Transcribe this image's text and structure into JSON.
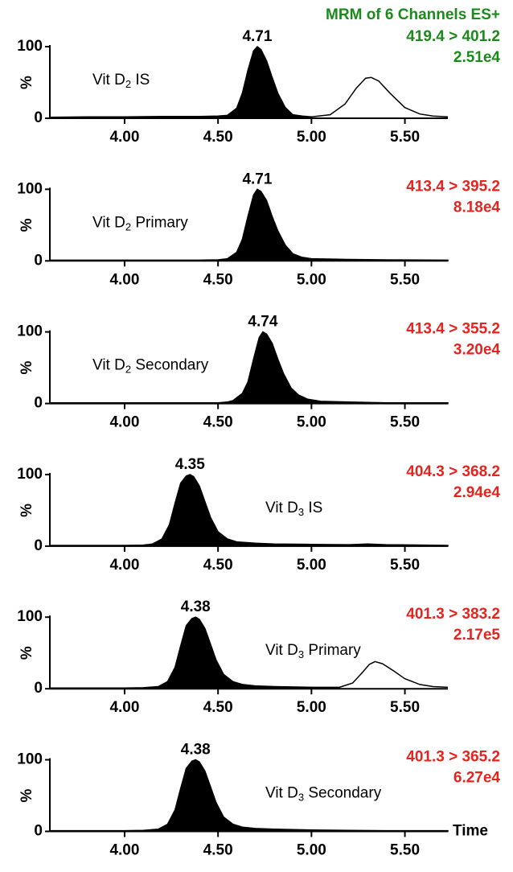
{
  "chart_data": [
    {
      "type": "line",
      "title": "MRM of 6 Channels ES+",
      "title_color": "#1a8a1a",
      "label": [
        "Vit D",
        "2",
        " IS"
      ],
      "channel": "419.4 > 401.2",
      "intensity": "2.51e4",
      "channel_color": "#1a8a1a",
      "peak_label": "4.71",
      "ylabel": "%",
      "xlim": [
        3.6,
        5.73
      ],
      "ylim": [
        0,
        100
      ],
      "yticks": [
        0,
        100
      ],
      "xticks": [
        {
          "value": 4,
          "label": "4.00"
        },
        {
          "value": 4.5,
          "label": "4.50"
        },
        {
          "value": 5,
          "label": "5.00"
        },
        {
          "value": 5.5,
          "label": "5.50"
        }
      ],
      "series": [
        {
          "color": "#000000",
          "fill": true,
          "x": [
            3.6,
            3.8,
            4.0,
            4.2,
            4.4,
            4.5,
            4.55,
            4.6,
            4.63,
            4.66,
            4.69,
            4.71,
            4.73,
            4.76,
            4.79,
            4.82,
            4.86,
            4.9,
            4.95,
            5.0
          ],
          "values": [
            1.5,
            2,
            2,
            2.5,
            2.5,
            3,
            4,
            14,
            35,
            67,
            94,
            100,
            96,
            80,
            57,
            35,
            15,
            5,
            3,
            2
          ]
        },
        {
          "color": "#000000",
          "fill": false,
          "x": [
            5.0,
            5.1,
            5.18,
            5.24,
            5.29,
            5.32,
            5.36,
            5.42,
            5.5,
            5.58,
            5.65,
            5.73
          ],
          "values": [
            2,
            5,
            20,
            42,
            56,
            57,
            52,
            35,
            15,
            6,
            3,
            2
          ]
        }
      ]
    },
    {
      "type": "line",
      "label": [
        "Vit D",
        "2",
        " Primary"
      ],
      "channel": "413.4 > 395.2",
      "intensity": "8.18e4",
      "channel_color": "#e52420",
      "peak_label": "4.71",
      "ylabel": "%",
      "xlim": [
        3.6,
        5.73
      ],
      "ylim": [
        0,
        100
      ],
      "yticks": [
        0,
        100
      ],
      "xticks": [
        {
          "value": 4,
          "label": "4.00"
        },
        {
          "value": 4.5,
          "label": "4.50"
        },
        {
          "value": 5,
          "label": "5.00"
        },
        {
          "value": 5.5,
          "label": "5.50"
        }
      ],
      "series": [
        {
          "color": "#000000",
          "fill": true,
          "x": [
            3.6,
            3.8,
            4.0,
            4.2,
            4.4,
            4.5,
            4.55,
            4.6,
            4.63,
            4.66,
            4.69,
            4.71,
            4.73,
            4.76,
            4.79,
            4.82,
            4.86,
            4.9,
            4.95,
            5.0,
            5.2,
            5.4,
            5.73
          ],
          "values": [
            1,
            1,
            1,
            1,
            1,
            1.5,
            3,
            12,
            30,
            62,
            92,
            100,
            97,
            84,
            62,
            42,
            22,
            10,
            5,
            3,
            2,
            1.5,
            1
          ]
        }
      ]
    },
    {
      "type": "line",
      "label": [
        "Vit D",
        "2",
        " Secondary"
      ],
      "channel": "413.4 > 355.2",
      "intensity": "3.20e4",
      "channel_color": "#e52420",
      "peak_label": "4.74",
      "ylabel": "%",
      "xlim": [
        3.6,
        5.73
      ],
      "ylim": [
        0,
        100
      ],
      "yticks": [
        0,
        100
      ],
      "xticks": [
        {
          "value": 4,
          "label": "4.00"
        },
        {
          "value": 4.5,
          "label": "4.50"
        },
        {
          "value": 5,
          "label": "5.00"
        },
        {
          "value": 5.5,
          "label": "5.50"
        }
      ],
      "series": [
        {
          "color": "#000000",
          "fill": true,
          "x": [
            3.6,
            3.8,
            4.0,
            4.2,
            4.4,
            4.5,
            4.55,
            4.58,
            4.63,
            4.66,
            4.69,
            4.72,
            4.74,
            4.76,
            4.79,
            4.82,
            4.85,
            4.89,
            4.93,
            4.98,
            5.05,
            5.2,
            5.4,
            5.73
          ],
          "values": [
            1,
            1,
            1,
            1,
            1,
            1,
            2,
            4,
            14,
            30,
            62,
            92,
            100,
            97,
            84,
            62,
            42,
            22,
            12,
            6,
            3,
            2,
            1,
            1
          ]
        }
      ]
    },
    {
      "type": "line",
      "label": [
        "Vit D",
        "3",
        " IS"
      ],
      "channel": "404.3 > 368.2",
      "intensity": "2.94e4",
      "channel_color": "#e52420",
      "peak_label": "4.35",
      "ylabel": "%",
      "xlim": [
        3.6,
        5.73
      ],
      "ylim": [
        0,
        100
      ],
      "yticks": [
        0,
        100
      ],
      "xticks": [
        {
          "value": 4,
          "label": "4.00"
        },
        {
          "value": 4.5,
          "label": "4.50"
        },
        {
          "value": 5,
          "label": "5.00"
        },
        {
          "value": 5.5,
          "label": "5.50"
        }
      ],
      "series": [
        {
          "color": "#000000",
          "fill": true,
          "x": [
            3.6,
            3.8,
            4.0,
            4.1,
            4.15,
            4.2,
            4.24,
            4.27,
            4.3,
            4.33,
            4.35,
            4.37,
            4.4,
            4.43,
            4.46,
            4.5,
            4.55,
            4.6,
            4.7,
            4.8,
            5.0,
            5.2,
            5.3,
            5.4,
            5.73
          ],
          "values": [
            1,
            1,
            1,
            1.5,
            3,
            10,
            30,
            60,
            88,
            98,
            100,
            97,
            84,
            62,
            40,
            20,
            10,
            6,
            4,
            3,
            2.5,
            2,
            3,
            2,
            1
          ]
        }
      ]
    },
    {
      "type": "line",
      "label": [
        "Vit D",
        "3",
        " Primary"
      ],
      "channel": "401.3 > 383.2",
      "intensity": "2.17e5",
      "channel_color": "#e52420",
      "peak_label": "4.38",
      "ylabel": "%",
      "xlim": [
        3.6,
        5.73
      ],
      "ylim": [
        0,
        100
      ],
      "yticks": [
        0,
        100
      ],
      "xticks": [
        {
          "value": 4,
          "label": "4.00"
        },
        {
          "value": 4.5,
          "label": "4.50"
        },
        {
          "value": 5,
          "label": "5.00"
        },
        {
          "value": 5.5,
          "label": "5.50"
        }
      ],
      "series": [
        {
          "color": "#000000",
          "fill": true,
          "x": [
            3.6,
            3.8,
            4.0,
            4.1,
            4.18,
            4.23,
            4.27,
            4.3,
            4.33,
            4.36,
            4.38,
            4.4,
            4.43,
            4.46,
            4.49,
            4.53,
            4.58,
            4.63,
            4.7,
            4.8,
            5.0,
            5.15
          ],
          "values": [
            1,
            1,
            1,
            1.5,
            3,
            10,
            30,
            60,
            88,
            98,
            100,
            97,
            84,
            62,
            40,
            20,
            10,
            6,
            4,
            3,
            2,
            2
          ]
        },
        {
          "color": "#000000",
          "fill": false,
          "x": [
            5.15,
            5.22,
            5.27,
            5.31,
            5.34,
            5.38,
            5.44,
            5.5,
            5.58,
            5.65,
            5.73
          ],
          "values": [
            2,
            8,
            22,
            34,
            38,
            35,
            25,
            14,
            6,
            3,
            2
          ]
        }
      ]
    },
    {
      "type": "line",
      "label": [
        "Vit D",
        "3",
        " Secondary"
      ],
      "channel": "401.3 > 365.2",
      "intensity": "6.27e4",
      "channel_color": "#e52420",
      "peak_label": "4.38",
      "ylabel": "%",
      "xlabel": "Time",
      "xlim": [
        3.6,
        5.73
      ],
      "ylim": [
        0,
        100
      ],
      "yticks": [
        0,
        100
      ],
      "xticks": [
        {
          "value": 4,
          "label": "4.00"
        },
        {
          "value": 4.5,
          "label": "4.50"
        },
        {
          "value": 5,
          "label": "5.00"
        },
        {
          "value": 5.5,
          "label": "5.50"
        }
      ],
      "series": [
        {
          "color": "#000000",
          "fill": true,
          "x": [
            3.6,
            3.8,
            4.0,
            4.1,
            4.18,
            4.23,
            4.27,
            4.3,
            4.33,
            4.36,
            4.38,
            4.4,
            4.43,
            4.46,
            4.49,
            4.53,
            4.58,
            4.63,
            4.7,
            4.8,
            5.0,
            5.2,
            5.4,
            5.73
          ],
          "values": [
            1,
            1,
            1,
            1.5,
            3,
            10,
            30,
            60,
            88,
            98,
            100,
            97,
            84,
            62,
            40,
            20,
            10,
            6,
            4,
            3,
            2,
            1.5,
            1,
            1
          ]
        }
      ]
    }
  ]
}
